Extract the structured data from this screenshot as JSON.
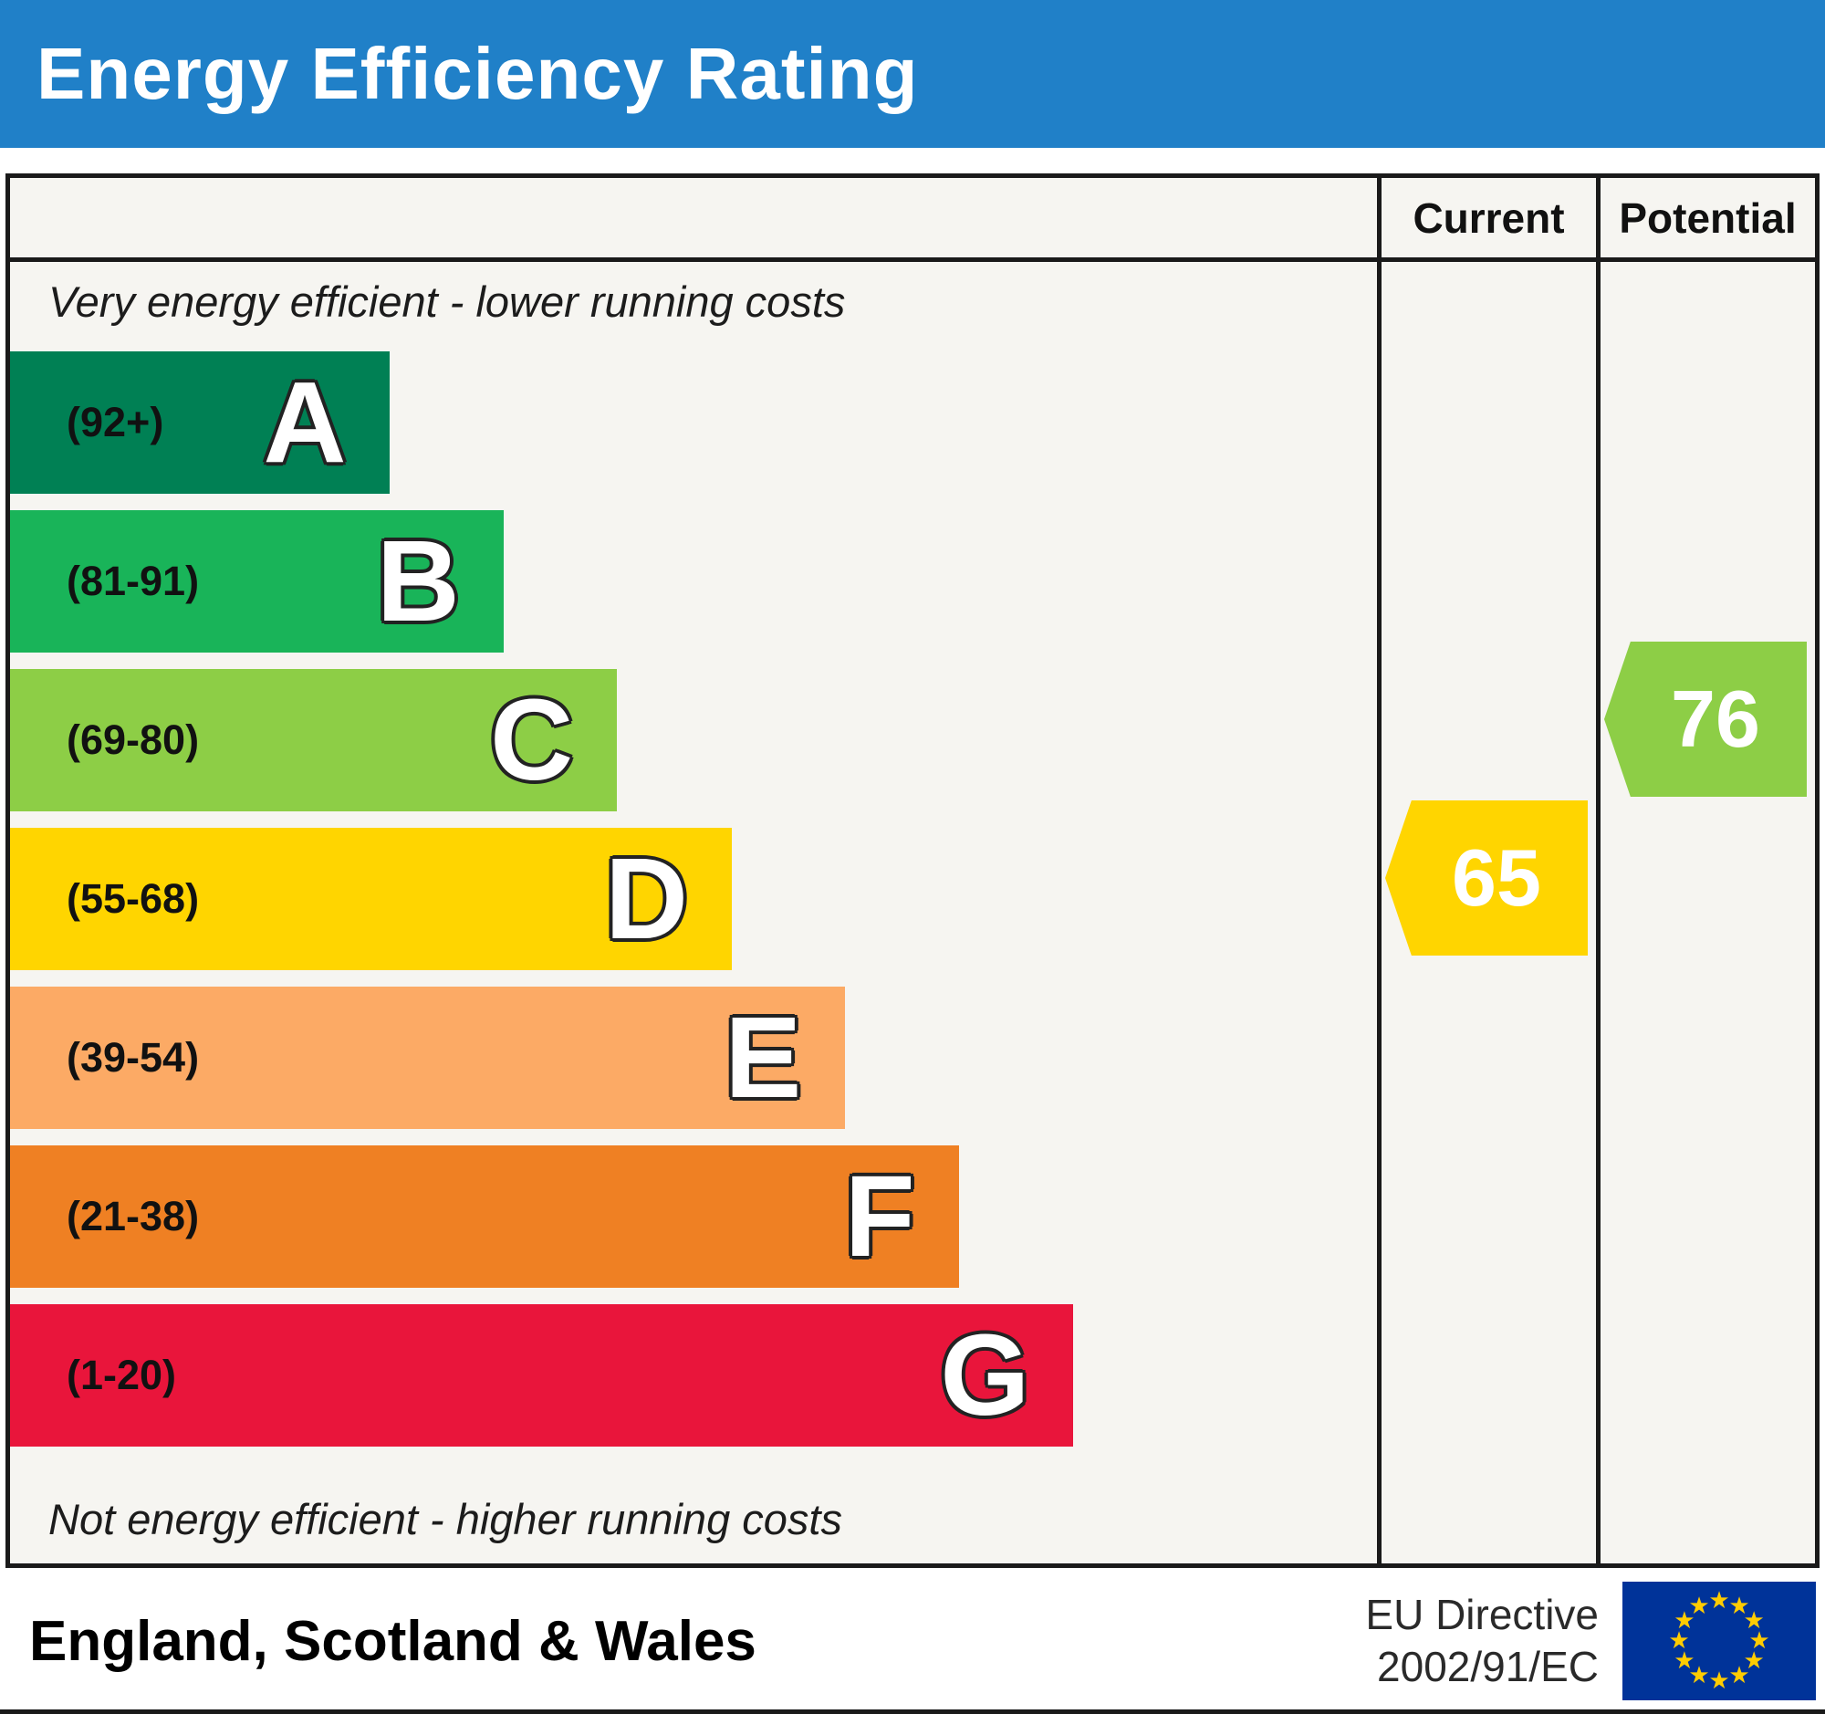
{
  "header": {
    "title": "Energy Efficiency Rating",
    "background": "#2080c8"
  },
  "columns": {
    "current_label": "Current",
    "potential_label": "Potential"
  },
  "captions": {
    "top": "Very energy efficient - lower running costs",
    "bottom": "Not energy efficient - higher running costs"
  },
  "bands": [
    {
      "letter": "A",
      "range": "(92+)",
      "color": "#008054",
      "width_pct": 27.8
    },
    {
      "letter": "B",
      "range": "(81-91)",
      "color": "#19b459",
      "width_pct": 36.1
    },
    {
      "letter": "C",
      "range": "(69-80)",
      "color": "#8dce46",
      "width_pct": 44.4
    },
    {
      "letter": "D",
      "range": "(55-68)",
      "color": "#ffd500",
      "width_pct": 52.8
    },
    {
      "letter": "E",
      "range": "(39-54)",
      "color": "#fcaa65",
      "width_pct": 61.1
    },
    {
      "letter": "F",
      "range": "(21-38)",
      "color": "#ef8023",
      "width_pct": 69.4
    },
    {
      "letter": "G",
      "range": "(1-20)",
      "color": "#e9153b",
      "width_pct": 77.8
    }
  ],
  "current": {
    "value": "65",
    "band": "D",
    "color": "#ffd500"
  },
  "potential": {
    "value": "76",
    "band": "C",
    "color": "#8dce46"
  },
  "footer": {
    "region": "England, Scotland & Wales",
    "directive_line1": "EU Directive",
    "directive_line2": "2002/91/EC",
    "flag": {
      "background": "#003399",
      "star_color": "#ffcc00"
    }
  },
  "chart_data": {
    "type": "bar",
    "title": "Energy Efficiency Rating",
    "bands": [
      {
        "letter": "A",
        "range": "92+",
        "range_min": 92,
        "range_max": 100
      },
      {
        "letter": "B",
        "range": "81-91",
        "range_min": 81,
        "range_max": 91
      },
      {
        "letter": "C",
        "range": "69-80",
        "range_min": 69,
        "range_max": 80
      },
      {
        "letter": "D",
        "range": "55-68",
        "range_min": 55,
        "range_max": 68
      },
      {
        "letter": "E",
        "range": "39-54",
        "range_min": 39,
        "range_max": 54
      },
      {
        "letter": "F",
        "range": "21-38",
        "range_min": 21,
        "range_max": 38
      },
      {
        "letter": "G",
        "range": "1-20",
        "range_min": 1,
        "range_max": 20
      }
    ],
    "current": 65,
    "current_band": "D",
    "potential": 76,
    "potential_band": "C",
    "notes": [
      "Very energy efficient - lower running costs",
      "Not energy efficient - higher running costs"
    ],
    "region": "England, Scotland & Wales",
    "directive": "EU Directive 2002/91/EC"
  }
}
